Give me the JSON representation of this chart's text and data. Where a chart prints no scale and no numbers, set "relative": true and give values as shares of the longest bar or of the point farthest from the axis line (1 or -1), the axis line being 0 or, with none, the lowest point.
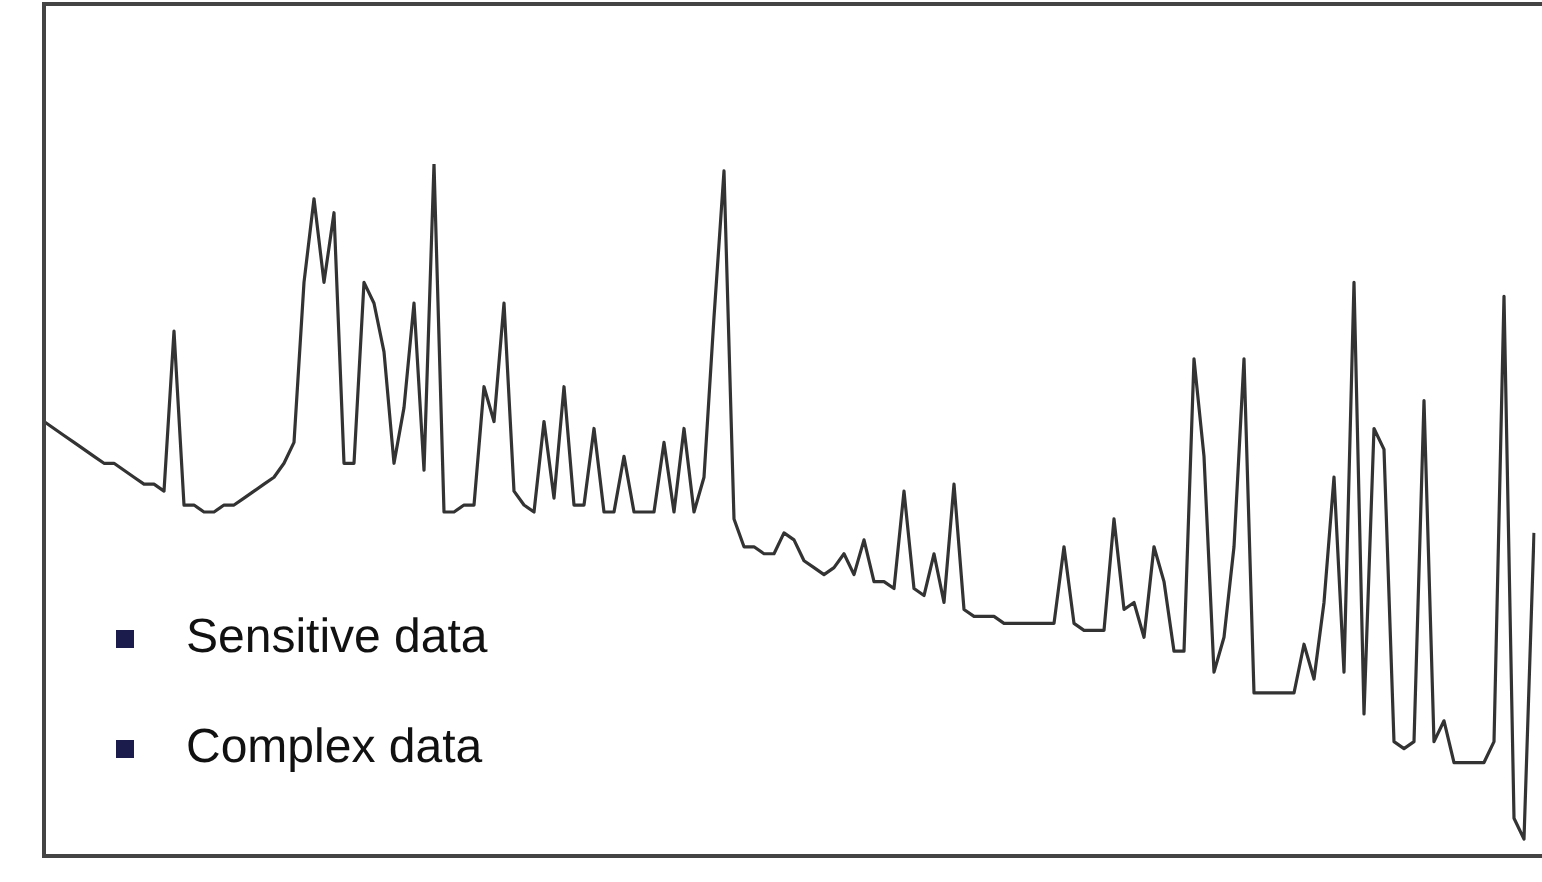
{
  "chart_data": {
    "type": "line",
    "relative": true,
    "legend": false,
    "categories": [
      null,
      null,
      null,
      null,
      null,
      null,
      null,
      null,
      null,
      null,
      null,
      null,
      null,
      null,
      null,
      null,
      null,
      null,
      null,
      null,
      null,
      null,
      null,
      null,
      null,
      null,
      null,
      null,
      null,
      null,
      null,
      null,
      null,
      null,
      null,
      null,
      null,
      null,
      null,
      null,
      null,
      null,
      null,
      null,
      null,
      null,
      null,
      null,
      null,
      null,
      null,
      null,
      null,
      null,
      null,
      null,
      null,
      null,
      null,
      null,
      null,
      null,
      null,
      null,
      null,
      null,
      null,
      null,
      null,
      null,
      null,
      null,
      null,
      null,
      null,
      null,
      null,
      null,
      null,
      null,
      null,
      null,
      null,
      null,
      null,
      null,
      null,
      null,
      null,
      null,
      null,
      null,
      null,
      null,
      null,
      null,
      null,
      null,
      null,
      null,
      null,
      null,
      null,
      null,
      null,
      null,
      null,
      null,
      null,
      null,
      null,
      null,
      null,
      null,
      null,
      null,
      null,
      null,
      null,
      null,
      null,
      null,
      null,
      null,
      null,
      null,
      null,
      null,
      null,
      null,
      null,
      null,
      null,
      null,
      null,
      null,
      null,
      null,
      null,
      null,
      null,
      null,
      null,
      null,
      null,
      null,
      null,
      null,
      null,
      null
    ],
    "series": [
      {
        "color": "#333333",
        "values": [
          0.63,
          0.62,
          0.61,
          0.6,
          0.59,
          0.58,
          0.57,
          0.57,
          0.56,
          0.55,
          0.54,
          0.54,
          0.53,
          0.76,
          0.51,
          0.51,
          0.5,
          0.5,
          0.51,
          0.51,
          0.52,
          0.53,
          0.54,
          0.55,
          0.57,
          0.6,
          0.83,
          0.95,
          0.83,
          0.93,
          0.57,
          0.57,
          0.83,
          0.8,
          0.73,
          0.57,
          0.65,
          0.8,
          0.56,
          1,
          0.5,
          0.5,
          0.51,
          0.51,
          0.68,
          0.63,
          0.8,
          0.53,
          0.51,
          0.5,
          0.63,
          0.52,
          0.68,
          0.51,
          0.51,
          0.62,
          0.5,
          0.5,
          0.58,
          0.5,
          0.5,
          0.5,
          0.6,
          0.5,
          0.62,
          0.5,
          0.55,
          0.78,
          0.99,
          0.49,
          0.45,
          0.45,
          0.44,
          0.44,
          0.47,
          0.46,
          0.43,
          0.42,
          0.41,
          0.42,
          0.44,
          0.41,
          0.46,
          0.4,
          0.4,
          0.39,
          0.53,
          0.39,
          0.38,
          0.44,
          0.37,
          0.54,
          0.36,
          0.35,
          0.35,
          0.35,
          0.34,
          0.34,
          0.34,
          0.34,
          0.34,
          0.34,
          0.45,
          0.34,
          0.33,
          0.33,
          0.33,
          0.49,
          0.36,
          0.37,
          0.32,
          0.45,
          0.4,
          0.3,
          0.3,
          0.72,
          0.58,
          0.27,
          0.32,
          0.45,
          0.72,
          0.24,
          0.24,
          0.24,
          0.24,
          0.24,
          0.31,
          0.26,
          0.37,
          0.55,
          0.27,
          0.83,
          0.21,
          0.62,
          0.59,
          0.17,
          0.16,
          0.17,
          0.66,
          0.17,
          0.2,
          0.14,
          0.14,
          0.14,
          0.14,
          0.17,
          0.81,
          0.06,
          0.03,
          0.47
        ]
      }
    ],
    "annotations": [
      "Sensitive data",
      "Complex data"
    ]
  }
}
